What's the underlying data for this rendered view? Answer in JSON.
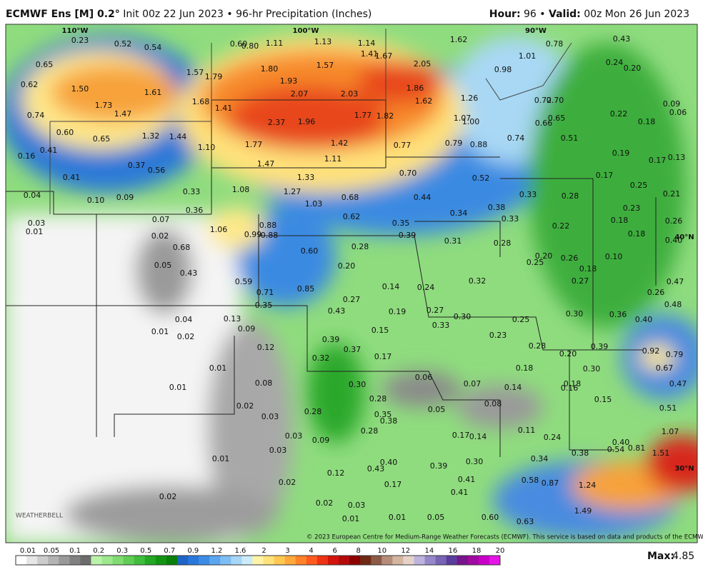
{
  "header": {
    "title_bold": "ECMWF Ens [M] 0.2°",
    "title_rest": "Init 00z 22 Jun 2023 • 96-hr Precipitation (Inches)",
    "hour_key": "Hour:",
    "hour_value": "96 •",
    "valid_key": "Valid:",
    "valid_value": "00z Mon 26 Jun 2023"
  },
  "map": {
    "graticule": [
      "110°W",
      "100°W",
      "90°W",
      "40°N",
      "30°N"
    ],
    "labels": [
      "0.23",
      "0.52",
      "0.54",
      "0.60",
      "0.80",
      "1.11",
      "1.13",
      "1.14",
      "1.41",
      "1.67",
      "1.62",
      "0.43",
      "0.78",
      "0.65",
      "1.01",
      "0.24",
      "0.20",
      "1.57",
      "1.79",
      "1.80",
      "1.57",
      "2.05",
      "0.98",
      "0.62",
      "1.50",
      "1.61",
      "1.93",
      "2.07",
      "2.03",
      "1.86",
      "1.26",
      "0.72",
      "0.70",
      "1.68",
      "1.62",
      "1.73",
      "1.41",
      "0.09",
      "0.06",
      "0.74",
      "1.47",
      "1.77",
      "1.82",
      "1.07",
      "1.00",
      "0.65",
      "0.66",
      "0.22",
      "0.18",
      "2.37",
      "1.96",
      "0.60",
      "1.32",
      "1.44",
      "0.74",
      "0.51",
      "0.65",
      "1.42",
      "0.79",
      "0.88",
      "0.77",
      "1.77",
      "1.10",
      "0.41",
      "0.16",
      "0.19",
      "0.17",
      "0.13",
      "1.11",
      "1.47",
      "0.37",
      "0.56",
      "0.70",
      "0.41",
      "1.33",
      "0.52",
      "0.17",
      "0.25",
      "1.08",
      "1.27",
      "0.33",
      "0.33",
      "0.28",
      "0.21",
      "0.04",
      "0.68",
      "0.44",
      "0.10",
      "0.09",
      "1.03",
      "0.38",
      "0.23",
      "0.36",
      "0.34",
      "0.62",
      "0.33",
      "0.07",
      "0.18",
      "0.26",
      "0.03",
      "0.35",
      "0.88",
      "0.22",
      "1.06",
      "0.01",
      "0.02",
      "0.99",
      "0.88",
      "0.39",
      "0.18",
      "0.31",
      "0.28",
      "0.40",
      "0.68",
      "0.28",
      "0.60",
      "0.20",
      "0.26",
      "0.10",
      "0.25",
      "0.05",
      "0.20",
      "0.18",
      "0.43",
      "0.32",
      "0.27",
      "0.47",
      "0.59",
      "0.14",
      "0.24",
      "0.85",
      "0.71",
      "0.26",
      "0.27",
      "0.48",
      "0.35",
      "0.43",
      "0.19",
      "0.27",
      "0.30",
      "0.36",
      "0.30",
      "0.25",
      "0.40",
      "0.04",
      "0.13",
      "0.33",
      "0.09",
      "0.01",
      "0.15",
      "0.23",
      "0.02",
      "0.39",
      "0.12",
      "0.37",
      "0.28",
      "0.39",
      "0.92",
      "0.79",
      "0.20",
      "0.17",
      "0.32",
      "0.18",
      "0.30",
      "0.67",
      "0.01",
      "0.06",
      "0.07",
      "0.08",
      "0.30",
      "0.14",
      "0.18",
      "0.16",
      "0.47",
      "0.01",
      "0.15",
      "0.28",
      "0.08",
      "0.02",
      "0.05",
      "0.51",
      "0.28",
      "0.35",
      "0.03",
      "0.38",
      "0.11",
      "0.28",
      "1.07",
      "0.03",
      "0.17",
      "0.14",
      "0.24",
      "0.09",
      "0.40",
      "0.54",
      "0.81",
      "1.51",
      "0.03",
      "0.34",
      "0.38",
      "0.01",
      "0.40",
      "0.30",
      "0.39",
      "0.43",
      "0.12",
      "0.41",
      "0.58",
      "0.87",
      "0.02",
      "0.17",
      "1.24",
      "0.41",
      "0.02",
      "0.02",
      "0.03",
      "1.49",
      "0.60",
      "0.01",
      "0.01",
      "0.05",
      "0.63"
    ],
    "logo": "WEATHERBELL",
    "copyright": "© 2023 European Centre for Medium-Range Weather Forecasts (ECMWF). This service is based on data and products of the ECMWF."
  },
  "colorbar": {
    "ticks": [
      "0.01",
      "0.05",
      "0.1",
      "0.2",
      "0.3",
      "0.5",
      "0.7",
      "0.9",
      "1.2",
      "1.6",
      "2",
      "3",
      "4",
      "6",
      "8",
      "10",
      "12",
      "14",
      "16",
      "18",
      "20"
    ],
    "colors": [
      "#ffffff",
      "#e6e6e6",
      "#cccccc",
      "#b3b3b3",
      "#999999",
      "#808080",
      "#6c6c6c",
      "#b9f2a8",
      "#9de88c",
      "#80dc70",
      "#5fcd55",
      "#3fbd3c",
      "#22a822",
      "#129412",
      "#0a7f0a",
      "#1e64c8",
      "#2878dc",
      "#3c8ce6",
      "#5aa5f0",
      "#7ebef5",
      "#a6d6f8",
      "#ccebf8",
      "#fff3a8",
      "#ffe27a",
      "#ffc850",
      "#ffa83c",
      "#ff8228",
      "#ff5a1e",
      "#ee3214",
      "#d2140a",
      "#b40a0a",
      "#8c0000",
      "#6e2814",
      "#8c5a46",
      "#b48c78",
      "#d2b4a0",
      "#e6d2c8",
      "#bcb4dc",
      "#9688c8",
      "#7864b4",
      "#5a3c9c",
      "#78148c",
      "#a00aa0",
      "#c800c8",
      "#e614e6"
    ],
    "max_key": "Max:",
    "max_value": "4.85"
  }
}
